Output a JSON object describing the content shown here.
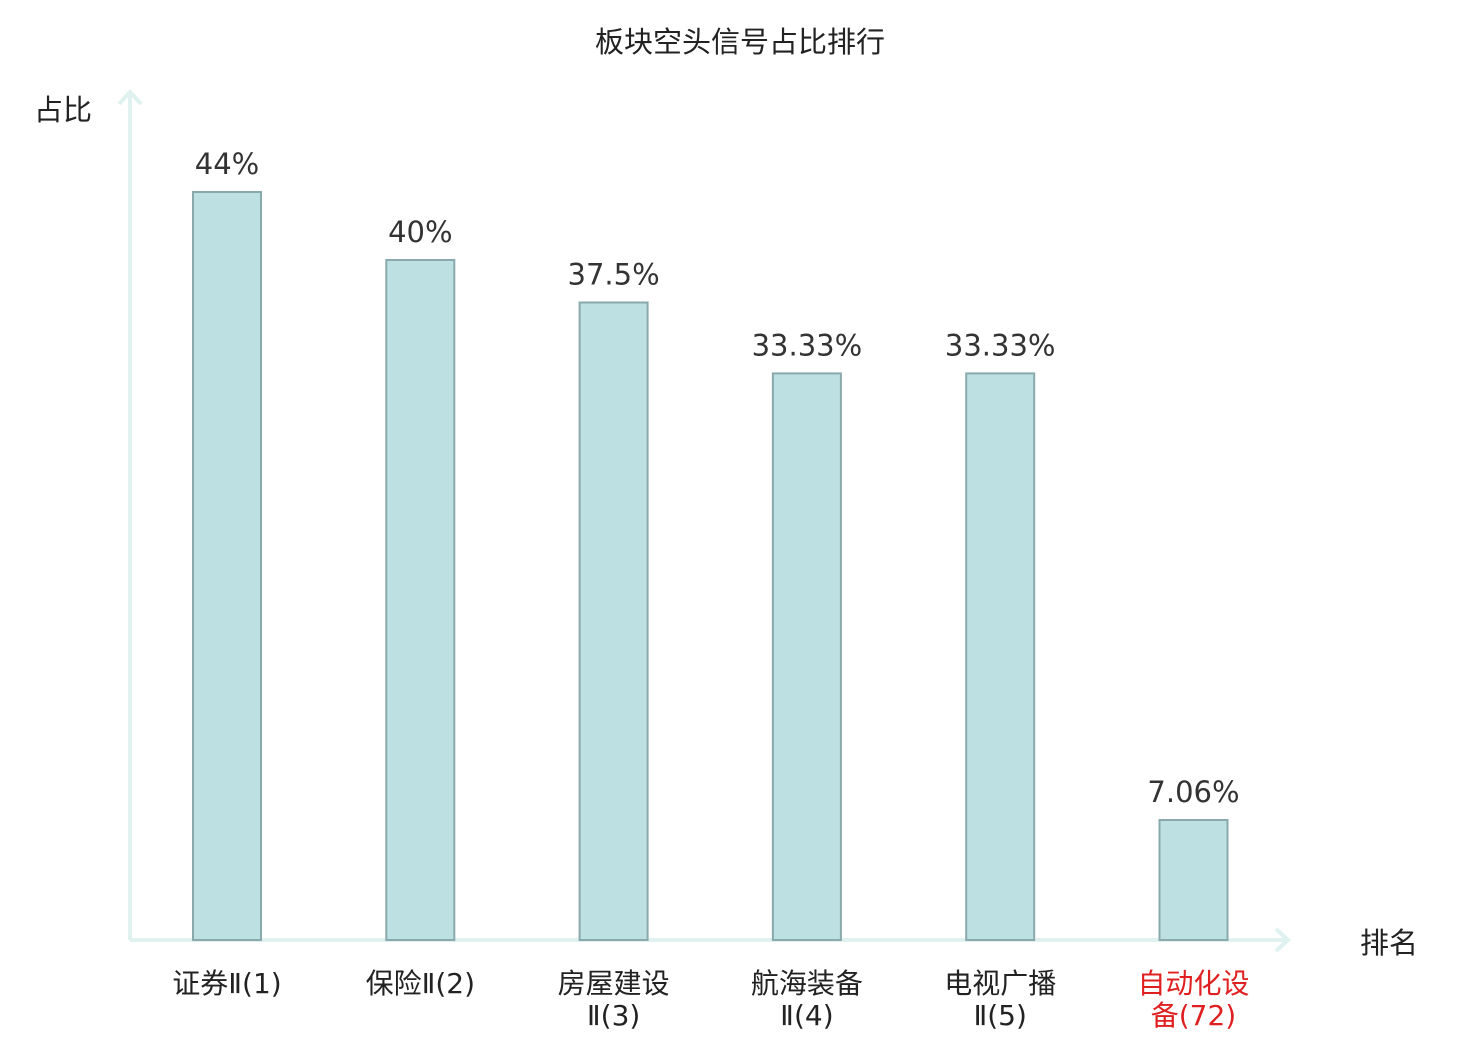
{
  "chart_data": {
    "type": "bar",
    "title": "板块空头信号占比排行",
    "ylabel": "占比",
    "xlabel": "排名",
    "ylim": [
      0,
      50
    ],
    "grid": false,
    "categories": [
      [
        "证券Ⅱ(1)"
      ],
      [
        "保险Ⅱ(2)"
      ],
      [
        "房屋建设",
        "Ⅱ(3)"
      ],
      [
        "航海装备",
        "Ⅱ(4)"
      ],
      [
        "电视广播",
        "Ⅱ(5)"
      ],
      [
        "自动化设",
        "备(72)"
      ]
    ],
    "values": [
      44,
      40,
      37.5,
      33.33,
      33.33,
      7.06
    ],
    "value_labels": [
      "44%",
      "40%",
      "37.5%",
      "33.33%",
      "33.33%",
      "7.06%"
    ],
    "highlight_index": 5,
    "colors": {
      "bar_fill": "#bde0e3",
      "bar_stroke": "#8aa9ad",
      "axis": "#dff2ef",
      "text": "#333333",
      "label": "#222222",
      "highlight": "#e02020"
    }
  }
}
